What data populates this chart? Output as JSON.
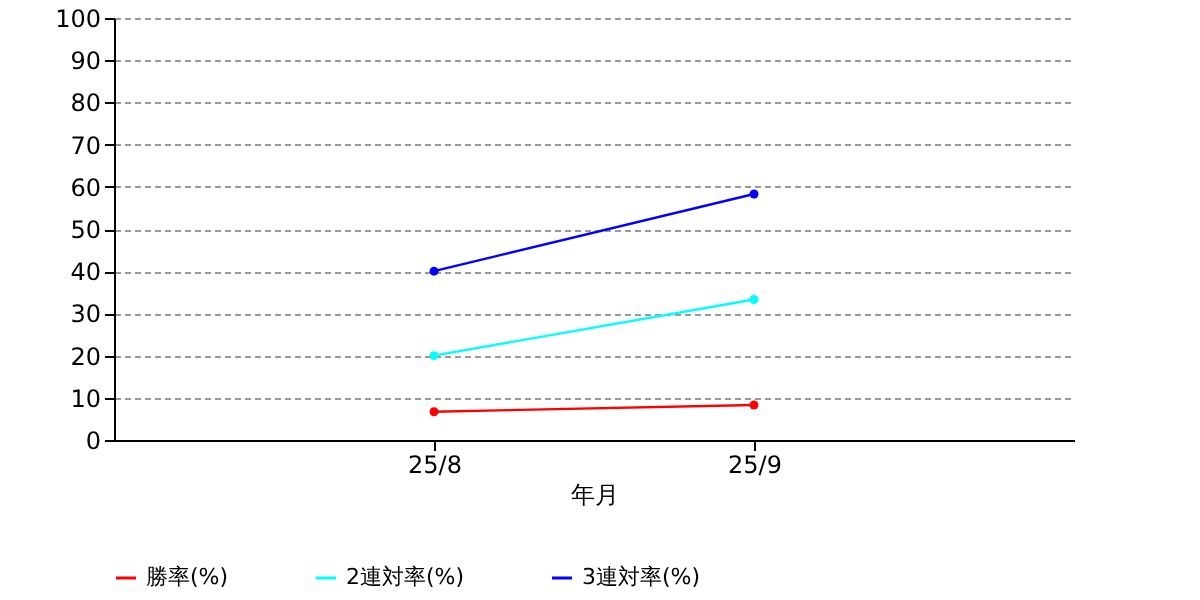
{
  "chart_data": {
    "type": "line",
    "xlabel": "年月",
    "categories": [
      "25/8",
      "25/9"
    ],
    "series": [
      {
        "name": "勝率(%)",
        "color": "#ff0000",
        "values": [
          6.7,
          8.3
        ]
      },
      {
        "name": "2連対率(%)",
        "color": "#00ffff",
        "values": [
          20,
          33.3
        ]
      },
      {
        "name": "3連対率(%)",
        "color": "#0000ff",
        "values": [
          40,
          58.3
        ]
      }
    ],
    "ylim": [
      0,
      100
    ],
    "yticks": [
      0,
      10,
      20,
      30,
      40,
      50,
      60,
      70,
      80,
      90,
      100
    ],
    "grid": "y",
    "legend": "bottom",
    "marker": "circle",
    "line_style": "solid"
  }
}
